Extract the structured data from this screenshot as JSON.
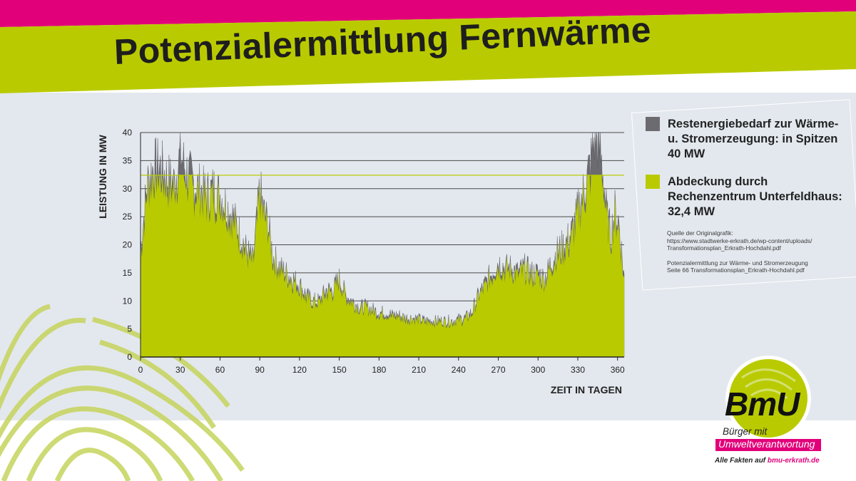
{
  "colors": {
    "accent_green": "#b9cb00",
    "accent_magenta": "#e2007a",
    "residual_gray": "#6b6b70",
    "background_panel": "#e3e8ee"
  },
  "title": "Potenzialermittlung Fernwärme",
  "legend": {
    "items": [
      {
        "label": "Restenergiebedarf zur Wärme- u. Stromerzeugung: in Spitzen 40 MW",
        "color": "#6b6b70"
      },
      {
        "label": "Abdeckung durch Rechenzentrum Unterfeldhaus: 32,4 MW",
        "color": "#b9cb00"
      }
    ],
    "source_lines": [
      "Quelle der Originalgrafik:",
      "https://www.stadtwerke-erkrath.de/wp-content/uploads/",
      "Transformationsplan_Erkrath-Hochdahl.pdf",
      "",
      "Potenzialermittlung zur Wärme- und Stromerzeugung",
      "Seite 66 Transformationsplan_Erkrath-Hochdahl.pdf"
    ]
  },
  "logo": {
    "name": "BmU",
    "subtitle": "Bürger mit",
    "tagline": "Umweltverantwortung",
    "footer_prefix": "Alle Fakten auf ",
    "footer_link": "bmu-erkrath.de"
  },
  "chart_data": {
    "type": "area",
    "xlabel": "ZEIT IN TAGEN",
    "ylabel": "LEISTUNG IN MW",
    "xlim": [
      0,
      365
    ],
    "ylim": [
      0,
      40
    ],
    "xticks": [
      0,
      30,
      60,
      90,
      120,
      150,
      180,
      210,
      240,
      270,
      300,
      330,
      360
    ],
    "yticks": [
      0,
      5,
      10,
      15,
      20,
      25,
      30,
      35,
      40
    ],
    "grid": true,
    "cap_line": 32.4,
    "series": [
      {
        "name": "Restenergiebedarf zur Wärme- u. Stromerzeugung",
        "color": "#6b6b70",
        "x": [
          0,
          5,
          10,
          15,
          20,
          25,
          30,
          35,
          40,
          45,
          50,
          55,
          60,
          65,
          70,
          75,
          80,
          85,
          88,
          90,
          93,
          96,
          100,
          105,
          110,
          115,
          120,
          125,
          130,
          135,
          140,
          145,
          150,
          155,
          160,
          165,
          170,
          175,
          180,
          185,
          190,
          195,
          200,
          205,
          210,
          215,
          220,
          225,
          230,
          235,
          240,
          245,
          250,
          255,
          260,
          265,
          270,
          275,
          280,
          285,
          290,
          295,
          300,
          305,
          310,
          315,
          320,
          325,
          330,
          335,
          340,
          343,
          346,
          349,
          352,
          355,
          358,
          361,
          365
        ],
        "values": [
          19,
          31,
          34,
          34,
          32,
          31,
          36,
          33,
          31,
          30,
          29,
          30,
          29,
          27,
          25,
          22,
          19,
          17,
          25,
          30,
          26,
          24,
          18,
          16,
          15,
          14,
          13,
          11,
          10,
          10,
          12,
          12,
          14,
          11,
          10,
          9,
          9,
          8.5,
          8,
          8,
          7.5,
          7.5,
          7,
          7,
          6.8,
          6.5,
          6.5,
          6.5,
          6.5,
          6.5,
          6.8,
          7,
          8,
          11,
          13,
          15,
          17,
          16,
          16,
          15,
          16,
          15,
          15,
          14,
          17,
          19,
          20,
          22,
          26,
          30,
          35,
          40,
          38,
          33,
          25,
          22,
          26,
          24,
          14
        ]
      },
      {
        "name": "Abdeckung durch Rechenzentrum Unterfeldhaus",
        "color": "#b9cb00",
        "cap": 32.4
      }
    ]
  }
}
